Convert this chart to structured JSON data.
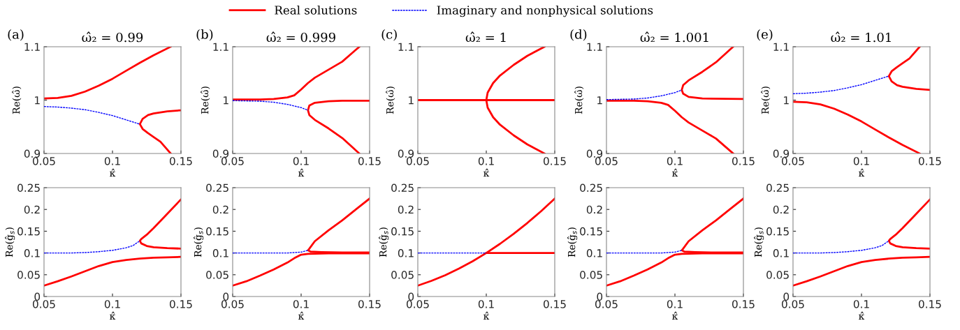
{
  "chart_data": [
    {
      "type": "line",
      "title": "ω̂₂ = 0.99",
      "annotations": [
        "(a)"
      ],
      "xlabel": "κ̂",
      "ylabel": "Re(ω̂)",
      "xlim": [
        0.05,
        0.15
      ],
      "ylim": [
        0.9,
        1.1
      ],
      "xticks": [
        0.05,
        0.1,
        0.15
      ],
      "yticks": [
        0.9,
        1,
        1.1
      ],
      "legend": "top",
      "series": [
        {
          "name": "Real solutions",
          "color": "#ff0000",
          "line_style": "solid",
          "x": [
            0.05,
            0.06,
            0.07,
            0.08,
            0.09,
            0.1,
            0.11,
            0.12,
            0.13,
            0.1425
          ],
          "values": [
            1.003,
            1.004,
            1.008,
            1.016,
            1.027,
            1.04,
            1.055,
            1.07,
            1.084,
            1.1
          ]
        },
        {
          "name": "Imaginary and nonphysical solutions",
          "color": "#0000ff",
          "line_style": "dashed",
          "x": [
            0.05,
            0.06,
            0.07,
            0.08,
            0.09,
            0.1,
            0.11,
            0.12
          ],
          "values": [
            0.988,
            0.987,
            0.985,
            0.982,
            0.977,
            0.971,
            0.963,
            0.955
          ]
        },
        {
          "color": "#ff0000",
          "line_style": "solid",
          "x": [
            0.15,
            0.14,
            0.13,
            0.126,
            0.122,
            0.12,
            0.122,
            0.126,
            0.13,
            0.135,
            0.1425
          ],
          "values": [
            0.981,
            0.979,
            0.975,
            0.972,
            0.965,
            0.955,
            0.946,
            0.938,
            0.931,
            0.922,
            0.9
          ]
        }
      ]
    },
    {
      "type": "line",
      "title": "ω̂₂ = 0.999",
      "annotations": [
        "(b)"
      ],
      "xlabel": "κ̂",
      "ylabel": "Re(ω̂)",
      "xlim": [
        0.05,
        0.15
      ],
      "ylim": [
        0.9,
        1.1
      ],
      "xticks": [
        0.05,
        0.1,
        0.15
      ],
      "yticks": [
        0.9,
        1,
        1.1
      ],
      "series": [
        {
          "color": "#ff0000",
          "line_style": "solid",
          "x": [
            0.05,
            0.07,
            0.08,
            0.09,
            0.095,
            0.1,
            0.105,
            0.11,
            0.12,
            0.13,
            0.1425
          ],
          "values": [
            1.001,
            1.001,
            1.002,
            1.005,
            1.009,
            1.02,
            1.032,
            1.042,
            1.057,
            1.072,
            1.1
          ]
        },
        {
          "color": "#0000ff",
          "line_style": "dashed",
          "x": [
            0.05,
            0.07,
            0.08,
            0.09,
            0.1,
            0.105
          ],
          "values": [
            0.999,
            0.998,
            0.996,
            0.992,
            0.986,
            0.981
          ]
        },
        {
          "color": "#ff0000",
          "line_style": "solid",
          "x": [
            0.15,
            0.13,
            0.12,
            0.11,
            0.106,
            0.105,
            0.106,
            0.11,
            0.12,
            0.13,
            0.1425
          ],
          "values": [
            0.999,
            0.999,
            0.998,
            0.995,
            0.99,
            0.981,
            0.972,
            0.963,
            0.947,
            0.929,
            0.9
          ]
        }
      ]
    },
    {
      "type": "line",
      "title": "ω̂₂ = 1",
      "annotations": [
        "(c)"
      ],
      "xlabel": "κ̂",
      "ylabel": "Re(ω̂)",
      "xlim": [
        0.05,
        0.15
      ],
      "ylim": [
        0.9,
        1.1
      ],
      "xticks": [
        0.05,
        0.1,
        0.15
      ],
      "yticks": [
        0.9,
        1,
        1.1
      ],
      "series": [
        {
          "color": "#ff0000",
          "line_style": "solid",
          "x": [
            0.05,
            0.15
          ],
          "values": [
            1,
            1
          ]
        },
        {
          "color": "#ff0000",
          "line_style": "solid",
          "x": [
            0.1425,
            0.13,
            0.12,
            0.11,
            0.105,
            0.101,
            0.1,
            0.101,
            0.105,
            0.11,
            0.12,
            0.13,
            0.1425
          ],
          "values": [
            1.1,
            1.083,
            1.066,
            1.046,
            1.032,
            1.014,
            1.0,
            0.986,
            0.968,
            0.954,
            0.934,
            0.917,
            0.9
          ]
        }
      ]
    },
    {
      "type": "line",
      "title": "ω̂₂ = 1.001",
      "annotations": [
        "(d)"
      ],
      "xlabel": "κ̂",
      "ylabel": "Re(ω̂)",
      "xlim": [
        0.05,
        0.15
      ],
      "ylim": [
        0.9,
        1.1
      ],
      "xticks": [
        0.05,
        0.1,
        0.15
      ],
      "yticks": [
        0.9,
        1,
        1.1
      ],
      "series": [
        {
          "color": "#0000ff",
          "line_style": "dashed",
          "x": [
            0.05,
            0.07,
            0.08,
            0.09,
            0.1,
            0.105
          ],
          "values": [
            1.001,
            1.002,
            1.004,
            1.008,
            1.014,
            1.019
          ]
        },
        {
          "color": "#ff0000",
          "line_style": "solid",
          "x": [
            0.1425,
            0.13,
            0.12,
            0.11,
            0.106,
            0.105,
            0.106,
            0.11,
            0.12,
            0.15
          ],
          "values": [
            1.1,
            1.071,
            1.053,
            1.037,
            1.028,
            1.019,
            1.012,
            1.006,
            1.003,
            1.002
          ]
        },
        {
          "color": "#ff0000",
          "line_style": "solid",
          "x": [
            0.05,
            0.07,
            0.08,
            0.09,
            0.095,
            0.1,
            0.105,
            0.11,
            0.12,
            0.13,
            0.1425
          ],
          "values": [
            0.999,
            0.999,
            0.998,
            0.995,
            0.991,
            0.98,
            0.968,
            0.958,
            0.943,
            0.928,
            0.9
          ]
        }
      ]
    },
    {
      "type": "line",
      "title": "ω̂₂ = 1.01",
      "annotations": [
        "(e)"
      ],
      "xlabel": "κ̂",
      "ylabel": "Re(ω̂)",
      "xlim": [
        0.05,
        0.15
      ],
      "ylim": [
        0.9,
        1.1
      ],
      "xticks": [
        0.05,
        0.1,
        0.15
      ],
      "yticks": [
        0.9,
        1,
        1.1
      ],
      "series": [
        {
          "color": "#0000ff",
          "line_style": "dashed",
          "x": [
            0.05,
            0.06,
            0.07,
            0.08,
            0.09,
            0.1,
            0.11,
            0.12
          ],
          "values": [
            1.012,
            1.013,
            1.015,
            1.018,
            1.023,
            1.029,
            1.037,
            1.045
          ]
        },
        {
          "color": "#ff0000",
          "line_style": "solid",
          "x": [
            0.1425,
            0.135,
            0.13,
            0.126,
            0.122,
            0.12,
            0.122,
            0.126,
            0.13,
            0.14,
            0.15
          ],
          "values": [
            1.1,
            1.078,
            1.069,
            1.062,
            1.054,
            1.045,
            1.035,
            1.028,
            1.025,
            1.021,
            1.019
          ]
        },
        {
          "color": "#ff0000",
          "line_style": "solid",
          "x": [
            0.05,
            0.06,
            0.07,
            0.08,
            0.09,
            0.1,
            0.11,
            0.12,
            0.13,
            0.1425
          ],
          "values": [
            0.997,
            0.996,
            0.992,
            0.984,
            0.973,
            0.96,
            0.945,
            0.93,
            0.916,
            0.9
          ]
        }
      ]
    },
    {
      "type": "line",
      "xlabel": "κ̂",
      "ylabel": "Re(ĝ$_{s}$)",
      "xlim": [
        0.05,
        0.15
      ],
      "ylim": [
        0,
        0.25
      ],
      "xticks": [
        0.05,
        0.1,
        0.15
      ],
      "yticks": [
        0,
        0.05,
        0.1,
        0.15,
        0.2,
        0.25
      ],
      "series": [
        {
          "color": "#0000ff",
          "line_style": "dashed",
          "x": [
            0.05,
            0.06,
            0.07,
            0.08,
            0.09,
            0.1,
            0.11,
            0.115,
            0.12
          ],
          "values": [
            0.1,
            0.1,
            0.1,
            0.101,
            0.103,
            0.106,
            0.112,
            0.117,
            0.128
          ]
        },
        {
          "color": "#ff0000",
          "line_style": "solid",
          "x": [
            0.15,
            0.14,
            0.13,
            0.125,
            0.121,
            0.12,
            0.121,
            0.125,
            0.13,
            0.14,
            0.15
          ],
          "values": [
            0.223,
            0.19,
            0.157,
            0.142,
            0.132,
            0.128,
            0.122,
            0.116,
            0.113,
            0.111,
            0.11
          ]
        },
        {
          "color": "#ff0000",
          "line_style": "solid",
          "x": [
            0.05,
            0.06,
            0.07,
            0.08,
            0.09,
            0.1,
            0.11,
            0.12,
            0.13,
            0.14,
            0.15
          ],
          "values": [
            0.025,
            0.035,
            0.046,
            0.058,
            0.07,
            0.079,
            0.084,
            0.087,
            0.089,
            0.09,
            0.091
          ]
        }
      ]
    },
    {
      "type": "line",
      "xlabel": "κ̂",
      "ylabel": "Re(ĝ$_{s}$)",
      "xlim": [
        0.05,
        0.15
      ],
      "ylim": [
        0,
        0.25
      ],
      "xticks": [
        0.05,
        0.1,
        0.15
      ],
      "yticks": [
        0,
        0.05,
        0.1,
        0.15,
        0.2,
        0.25
      ],
      "series": [
        {
          "color": "#0000ff",
          "line_style": "dashed",
          "x": [
            0.05,
            0.08,
            0.09,
            0.1,
            0.105
          ],
          "values": [
            0.1,
            0.1,
            0.1,
            0.102,
            0.106
          ]
        },
        {
          "color": "#ff0000",
          "line_style": "solid",
          "x": [
            0.15,
            0.14,
            0.13,
            0.12,
            0.11,
            0.106,
            0.105,
            0.107,
            0.115,
            0.13,
            0.15
          ],
          "values": [
            0.225,
            0.2,
            0.175,
            0.152,
            0.127,
            0.11,
            0.106,
            0.103,
            0.102,
            0.101,
            0.101
          ]
        },
        {
          "color": "#ff0000",
          "line_style": "solid",
          "x": [
            0.05,
            0.06,
            0.07,
            0.08,
            0.09,
            0.095,
            0.1,
            0.105,
            0.12,
            0.15
          ],
          "values": [
            0.025,
            0.035,
            0.048,
            0.062,
            0.078,
            0.088,
            0.096,
            0.098,
            0.099,
            0.099
          ]
        }
      ]
    },
    {
      "type": "line",
      "xlabel": "κ̂",
      "ylabel": "Re(ĝ$_{s}$)",
      "xlim": [
        0.05,
        0.15
      ],
      "ylim": [
        0,
        0.25
      ],
      "xticks": [
        0.05,
        0.1,
        0.15
      ],
      "yticks": [
        0,
        0.05,
        0.1,
        0.15,
        0.2,
        0.25
      ],
      "series": [
        {
          "color": "#0000ff",
          "line_style": "dashed",
          "x": [
            0.05,
            0.1
          ],
          "values": [
            0.1,
            0.1
          ]
        },
        {
          "color": "#ff0000",
          "line_style": "solid",
          "x": [
            0.1,
            0.15
          ],
          "values": [
            0.1,
            0.1
          ]
        },
        {
          "color": "#ff0000",
          "line_style": "solid",
          "x": [
            0.05,
            0.06,
            0.07,
            0.08,
            0.09,
            0.1,
            0.11,
            0.12,
            0.13,
            0.14,
            0.15
          ],
          "values": [
            0.025,
            0.036,
            0.049,
            0.064,
            0.081,
            0.1,
            0.121,
            0.144,
            0.169,
            0.196,
            0.225
          ]
        }
      ]
    },
    {
      "type": "line",
      "xlabel": "κ̂",
      "ylabel": "Re(ĝ$_{s}$)",
      "xlim": [
        0.05,
        0.15
      ],
      "ylim": [
        0,
        0.25
      ],
      "xticks": [
        0.05,
        0.1,
        0.15
      ],
      "yticks": [
        0,
        0.05,
        0.1,
        0.15,
        0.2,
        0.25
      ],
      "series": [
        {
          "color": "#0000ff",
          "line_style": "dashed",
          "x": [
            0.05,
            0.08,
            0.09,
            0.1,
            0.105
          ],
          "values": [
            0.1,
            0.1,
            0.1,
            0.102,
            0.106
          ]
        },
        {
          "color": "#ff0000",
          "line_style": "solid",
          "x": [
            0.15,
            0.14,
            0.13,
            0.12,
            0.11,
            0.106,
            0.105,
            0.107,
            0.115,
            0.13,
            0.15
          ],
          "values": [
            0.225,
            0.2,
            0.175,
            0.152,
            0.127,
            0.11,
            0.106,
            0.103,
            0.102,
            0.101,
            0.101
          ]
        },
        {
          "color": "#ff0000",
          "line_style": "solid",
          "x": [
            0.05,
            0.06,
            0.07,
            0.08,
            0.09,
            0.095,
            0.1,
            0.105,
            0.12,
            0.15
          ],
          "values": [
            0.025,
            0.035,
            0.048,
            0.062,
            0.078,
            0.088,
            0.096,
            0.098,
            0.099,
            0.099
          ]
        }
      ]
    },
    {
      "type": "line",
      "xlabel": "κ̂",
      "ylabel": "Re(ĝ$_{s}$)",
      "xlim": [
        0.05,
        0.15
      ],
      "ylim": [
        0,
        0.25
      ],
      "xticks": [
        0.05,
        0.1,
        0.15
      ],
      "yticks": [
        0,
        0.05,
        0.1,
        0.15,
        0.2,
        0.25
      ],
      "series": [
        {
          "color": "#0000ff",
          "line_style": "dashed",
          "x": [
            0.05,
            0.06,
            0.07,
            0.08,
            0.09,
            0.1,
            0.11,
            0.115,
            0.12
          ],
          "values": [
            0.1,
            0.1,
            0.1,
            0.101,
            0.103,
            0.106,
            0.112,
            0.117,
            0.128
          ]
        },
        {
          "color": "#ff0000",
          "line_style": "solid",
          "x": [
            0.15,
            0.14,
            0.13,
            0.125,
            0.121,
            0.12,
            0.121,
            0.125,
            0.13,
            0.14,
            0.15
          ],
          "values": [
            0.223,
            0.19,
            0.157,
            0.142,
            0.132,
            0.128,
            0.122,
            0.116,
            0.113,
            0.111,
            0.11
          ]
        },
        {
          "color": "#ff0000",
          "line_style": "solid",
          "x": [
            0.05,
            0.06,
            0.07,
            0.08,
            0.09,
            0.1,
            0.11,
            0.12,
            0.13,
            0.14,
            0.15
          ],
          "values": [
            0.025,
            0.035,
            0.046,
            0.058,
            0.07,
            0.079,
            0.084,
            0.087,
            0.089,
            0.09,
            0.091
          ]
        }
      ]
    }
  ]
}
